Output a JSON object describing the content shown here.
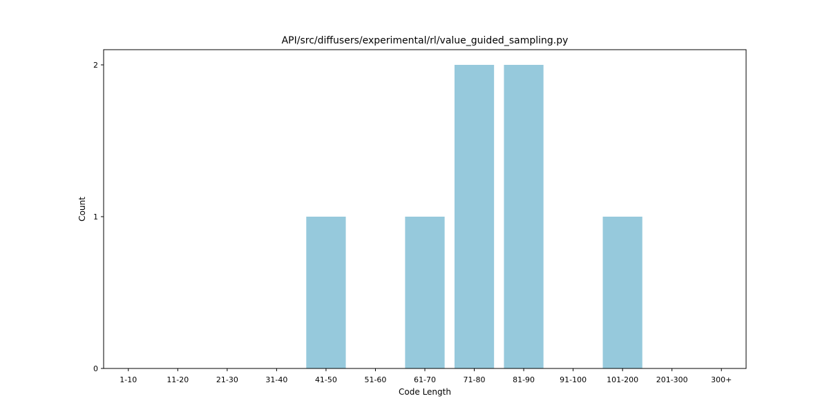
{
  "chart_data": {
    "type": "bar",
    "title": "API/src/diffusers/experimental/rl/value_guided_sampling.py",
    "xlabel": "Code Length",
    "ylabel": "Count",
    "categories": [
      "1-10",
      "11-20",
      "21-30",
      "31-40",
      "41-50",
      "51-60",
      "61-70",
      "71-80",
      "81-90",
      "91-100",
      "101-200",
      "201-300",
      "300+"
    ],
    "values": [
      0,
      0,
      0,
      0,
      1,
      0,
      1,
      2,
      2,
      0,
      1,
      0,
      0
    ],
    "ylim": [
      0,
      2.1
    ],
    "yticks": [
      0,
      1,
      2
    ],
    "bar_color": "#96c9dc",
    "grid": false,
    "legend": "none"
  }
}
